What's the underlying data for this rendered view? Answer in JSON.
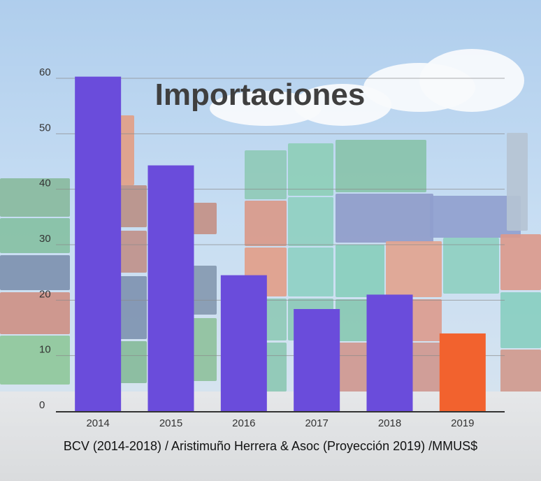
{
  "chart_data": {
    "type": "bar",
    "title": "Importaciones",
    "categories": [
      "2014",
      "2015",
      "2016",
      "2017",
      "2018",
      "2019"
    ],
    "values": [
      60.3,
      44.3,
      24.5,
      18.4,
      21.0,
      14.0
    ],
    "ylim": [
      0,
      60
    ],
    "yticks": [
      0,
      10,
      20,
      30,
      40,
      50,
      60
    ],
    "grid": true,
    "xlabel": "",
    "ylabel": "",
    "colors": {
      "bars": [
        "#6a4cdb",
        "#6a4cdb",
        "#6a4cdb",
        "#6a4cdb",
        "#6a4cdb",
        "#f2622e"
      ],
      "projection": "#f2622e",
      "historical": "#6a4cdb"
    }
  },
  "source_note": "BCV (2014-2018) / Aristimuño Herrera & Asoc (Proyección 2019) /MMUS$",
  "background": {
    "description_icon": "shipping-containers-photo"
  }
}
